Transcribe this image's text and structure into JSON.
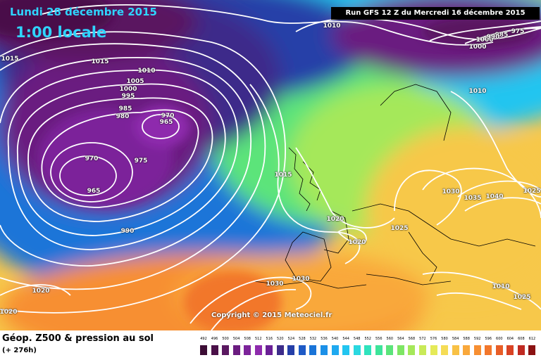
{
  "header": {
    "date": "Lundi 28 décembre 2015",
    "local_time": "1:00 locale",
    "run": "Run GFS 12 Z du Mercredi 16 décembre 2015"
  },
  "copyright": "Copyright © 2015 Meteociel.fr",
  "footer": {
    "product": "Géop. Z500 & pression au sol",
    "lead": "(+ 276h)"
  },
  "legend": {
    "labels": [
      "492",
      "496",
      "500",
      "504",
      "508",
      "512",
      "516",
      "520",
      "524",
      "528",
      "532",
      "536",
      "540",
      "544",
      "548",
      "552",
      "556",
      "560",
      "564",
      "568",
      "572",
      "576",
      "580",
      "584",
      "588",
      "592",
      "596",
      "600",
      "604",
      "608",
      "612"
    ],
    "colors": [
      "#3c0d35",
      "#4a1048",
      "#5a1860",
      "#6b1c80",
      "#7c239a",
      "#8e2bad",
      "#6a1f95",
      "#3d2c8a",
      "#253fa8",
      "#1e5ac6",
      "#1a74d8",
      "#1b90e8",
      "#1ea9f0",
      "#22c5f0",
      "#2ad8e0",
      "#2fe3bd",
      "#3de49a",
      "#5be47a",
      "#7ee664",
      "#a5e85a",
      "#c9ea58",
      "#e5ea58",
      "#f5dc55",
      "#f8c145",
      "#f9a83b",
      "#f78f32",
      "#f2772b",
      "#e85e27",
      "#d94324",
      "#c02b22",
      "#8b1212"
    ]
  },
  "pressure_labels": [
    {
      "text": "1015"
    },
    {
      "text": "1015"
    },
    {
      "text": "1010"
    },
    {
      "text": "1005"
    },
    {
      "text": "1000"
    },
    {
      "text": "995"
    },
    {
      "text": "985"
    },
    {
      "text": "980"
    },
    {
      "text": "970"
    },
    {
      "text": "965"
    },
    {
      "text": "970"
    },
    {
      "text": "975"
    },
    {
      "text": "965"
    },
    {
      "text": "990"
    },
    {
      "text": "1010"
    },
    {
      "text": "1015"
    },
    {
      "text": "1020"
    },
    {
      "text": "1020"
    },
    {
      "text": "1025"
    },
    {
      "text": "1030"
    },
    {
      "text": "1030"
    },
    {
      "text": "1030"
    },
    {
      "text": "1035"
    },
    {
      "text": "1040"
    },
    {
      "text": "1010"
    },
    {
      "text": "1010"
    },
    {
      "text": "1025"
    },
    {
      "text": "1020"
    },
    {
      "text": "1020"
    },
    {
      "text": "1025"
    },
    {
      "text": "975"
    },
    {
      "text": "1000"
    },
    {
      "text": "1000"
    },
    {
      "text": "985"
    },
    {
      "text": "990"
    }
  ]
}
